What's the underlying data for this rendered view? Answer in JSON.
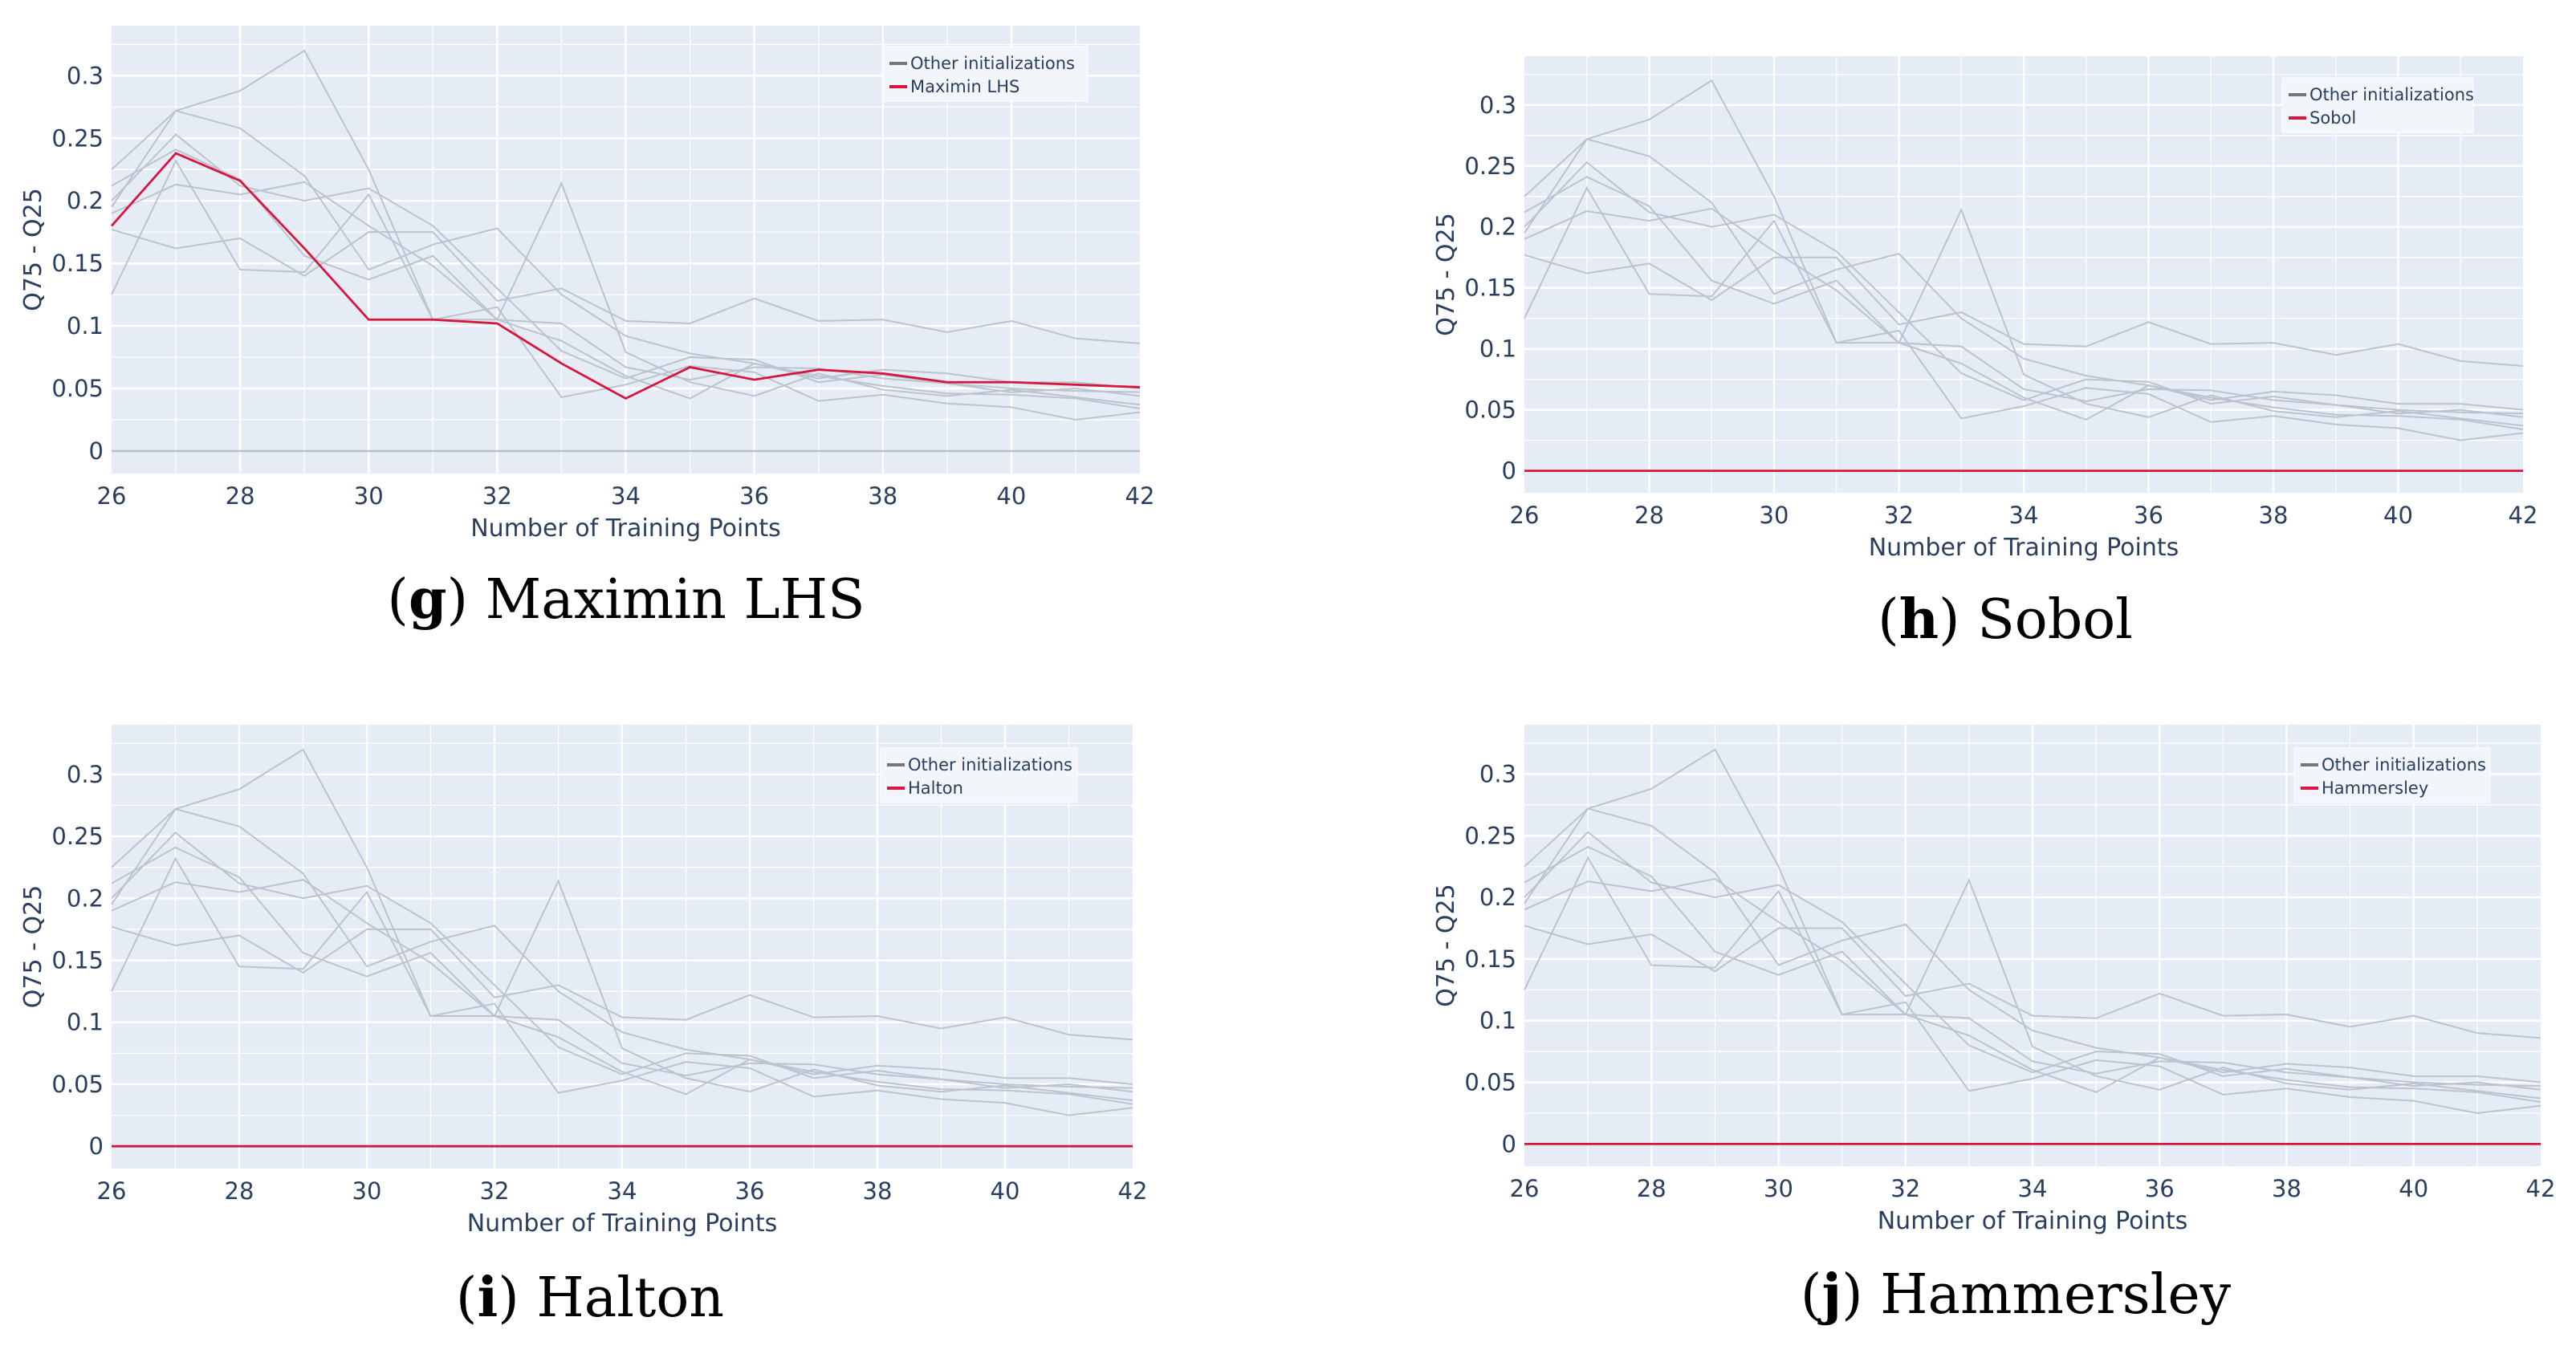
{
  "other_series": [
    {
      "values": [
        0.225,
        0.272,
        0.288,
        0.32,
        0.225,
        0.105,
        0.105,
        0.102,
        0.067,
        0.057,
        0.067,
        0.066,
        0.058,
        0.054,
        0.05,
        0.048,
        0.047
      ]
    },
    {
      "values": [
        0.195,
        0.272,
        0.258,
        0.22,
        0.145,
        0.165,
        0.178,
        0.125,
        0.092,
        0.078,
        0.07,
        0.06,
        0.052,
        0.046,
        0.045,
        0.042,
        0.034
      ]
    },
    {
      "values": [
        0.177,
        0.162,
        0.17,
        0.14,
        0.175,
        0.175,
        0.12,
        0.13,
        0.104,
        0.102,
        0.122,
        0.104,
        0.105,
        0.095,
        0.104,
        0.09,
        0.086
      ]
    },
    {
      "values": [
        0.125,
        0.232,
        0.145,
        0.143,
        0.205,
        0.105,
        0.115,
        0.043,
        0.053,
        0.068,
        0.063,
        0.04,
        0.045,
        0.038,
        0.035,
        0.025,
        0.031
      ]
    },
    {
      "values": [
        0.19,
        0.213,
        0.205,
        0.215,
        0.18,
        0.148,
        0.105,
        0.088,
        0.06,
        0.042,
        0.07,
        0.058,
        0.065,
        0.062,
        0.055,
        0.055,
        0.05
      ]
    },
    {
      "values": [
        0.2,
        0.253,
        0.212,
        0.2,
        0.21,
        0.18,
        0.13,
        0.08,
        0.058,
        0.075,
        0.073,
        0.055,
        0.061,
        0.054,
        0.047,
        0.05,
        0.044
      ]
    },
    {
      "values": [
        0.212,
        0.241,
        0.217,
        0.156,
        0.137,
        0.156,
        0.105,
        0.214,
        0.079,
        0.055,
        0.044,
        0.062,
        0.049,
        0.044,
        0.049,
        0.043,
        0.037
      ]
    }
  ],
  "chart_data": [
    {
      "type": "line",
      "caption_letter": "g",
      "caption_text": "Maximin LHS",
      "xlabel": "Number of Training Points",
      "ylabel": "Q75 - Q25",
      "x": [
        26,
        27,
        28,
        29,
        30,
        31,
        32,
        33,
        34,
        35,
        36,
        37,
        38,
        39,
        40,
        41,
        42
      ],
      "xlim": [
        26,
        42
      ],
      "ylim": [
        -0.018,
        0.34
      ],
      "x_ticks": [
        26,
        28,
        30,
        32,
        34,
        36,
        38,
        40,
        42
      ],
      "y_ticks": [
        0,
        0.05,
        0.1,
        0.15,
        0.2,
        0.25,
        0.3
      ],
      "y_tick_labels": [
        "0",
        "0.05",
        "0.1",
        "0.15",
        "0.2",
        "0.25",
        "0.3"
      ],
      "legend": [
        "Other initializations",
        "Maximin LHS"
      ],
      "legend_position": "top-right",
      "highlight": {
        "name": "Maximin LHS",
        "color": "#d6163e",
        "values": [
          0.18,
          0.238,
          0.216,
          0.162,
          0.105,
          0.105,
          0.102,
          0.07,
          0.042,
          0.067,
          0.057,
          0.065,
          0.062,
          0.055,
          0.055,
          0.053,
          0.051
        ]
      },
      "others_color": "#bcc3cf",
      "grid": true,
      "background": "#e5ecf6"
    },
    {
      "type": "line",
      "caption_letter": "h",
      "caption_text": "Sobol",
      "xlabel": "Number of Training Points",
      "ylabel": "Q75 - Q25",
      "x": [
        26,
        27,
        28,
        29,
        30,
        31,
        32,
        33,
        34,
        35,
        36,
        37,
        38,
        39,
        40,
        41,
        42
      ],
      "xlim": [
        26,
        42
      ],
      "ylim": [
        -0.018,
        0.34
      ],
      "x_ticks": [
        26,
        28,
        30,
        32,
        34,
        36,
        38,
        40,
        42
      ],
      "y_ticks": [
        0,
        0.05,
        0.1,
        0.15,
        0.2,
        0.25,
        0.3
      ],
      "y_tick_labels": [
        "0",
        "0.05",
        "0.1",
        "0.15",
        "0.2",
        "0.25",
        "0.3"
      ],
      "legend": [
        "Other initializations",
        "Sobol"
      ],
      "legend_position": "top-right",
      "highlight": {
        "name": "Sobol",
        "color": "#d6163e",
        "values": [
          0,
          0,
          0,
          0,
          0,
          0,
          0,
          0,
          0,
          0,
          0,
          0,
          0,
          0,
          0,
          0,
          0
        ]
      },
      "others_color": "#bcc3cf",
      "grid": true,
      "background": "#e5ecf6"
    },
    {
      "type": "line",
      "caption_letter": "i",
      "caption_text": "Halton",
      "xlabel": "Number of Training Points",
      "ylabel": "Q75 - Q25",
      "x": [
        26,
        27,
        28,
        29,
        30,
        31,
        32,
        33,
        34,
        35,
        36,
        37,
        38,
        39,
        40,
        41,
        42
      ],
      "xlim": [
        26,
        42
      ],
      "ylim": [
        -0.018,
        0.34
      ],
      "x_ticks": [
        26,
        28,
        30,
        32,
        34,
        36,
        38,
        40,
        42
      ],
      "y_ticks": [
        0,
        0.05,
        0.1,
        0.15,
        0.2,
        0.25,
        0.3
      ],
      "y_tick_labels": [
        "0",
        "0.05",
        "0.1",
        "0.15",
        "0.2",
        "0.25",
        "0.3"
      ],
      "legend": [
        "Other initializations",
        "Halton"
      ],
      "legend_position": "top-right",
      "highlight": {
        "name": "Halton",
        "color": "#d6163e",
        "values": [
          0,
          0,
          0,
          0,
          0,
          0,
          0,
          0,
          0,
          0,
          0,
          0,
          0,
          0,
          0,
          0,
          0
        ]
      },
      "others_color": "#bcc3cf",
      "grid": true,
      "background": "#e5ecf6"
    },
    {
      "type": "line",
      "caption_letter": "j",
      "caption_text": "Hammersley",
      "xlabel": "Number of Training Points",
      "ylabel": "Q75 - Q25",
      "x": [
        26,
        27,
        28,
        29,
        30,
        31,
        32,
        33,
        34,
        35,
        36,
        37,
        38,
        39,
        40,
        41,
        42
      ],
      "xlim": [
        26,
        42
      ],
      "ylim": [
        -0.018,
        0.34
      ],
      "x_ticks": [
        26,
        28,
        30,
        32,
        34,
        36,
        38,
        40,
        42
      ],
      "y_ticks": [
        0,
        0.05,
        0.1,
        0.15,
        0.2,
        0.25,
        0.3
      ],
      "y_tick_labels": [
        "0",
        "0.05",
        "0.1",
        "0.15",
        "0.2",
        "0.25",
        "0.3"
      ],
      "legend": [
        "Other initializations",
        "Hammersley"
      ],
      "legend_position": "top-right",
      "highlight": {
        "name": "Hammersley",
        "color": "#d6163e",
        "values": [
          0,
          0,
          0,
          0,
          0,
          0,
          0,
          0,
          0,
          0,
          0,
          0,
          0,
          0,
          0,
          0,
          0
        ]
      },
      "others_color": "#bcc3cf",
      "grid": true,
      "background": "#e5ecf6"
    }
  ]
}
